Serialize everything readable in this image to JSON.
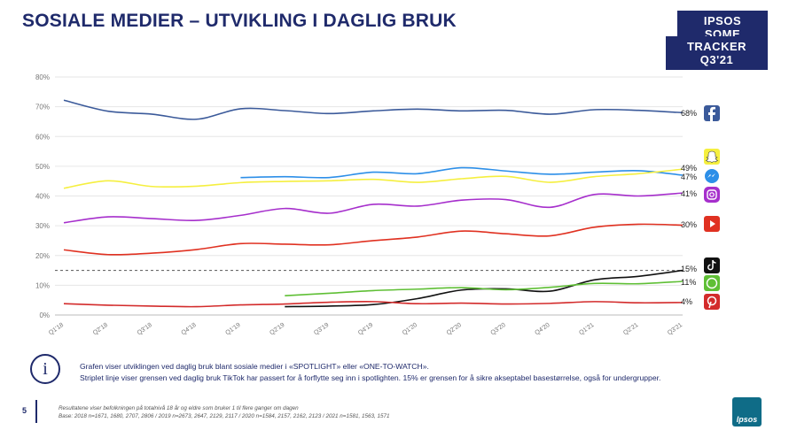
{
  "header": {
    "title": "SOSIALE MEDIER – UTVIKLING I DAGLIG BRUK",
    "tag_line1": "IPSOS SOME",
    "tag_line2": "TRACKER Q3'21"
  },
  "chart_data": {
    "type": "line",
    "x": [
      "Q1'18",
      "Q2'18",
      "Q3'18",
      "Q4'18",
      "Q1'19",
      "Q2'19",
      "Q3'19",
      "Q4'19",
      "Q1'20",
      "Q2'20",
      "Q3'20",
      "Q4'20",
      "Q1'21",
      "Q2'21",
      "Q3'21"
    ],
    "ylim": [
      0,
      80
    ],
    "yticks": [
      "0%",
      "10%",
      "20%",
      "30%",
      "40%",
      "50%",
      "60%",
      "70%",
      "80%"
    ],
    "grid": true,
    "threshold": {
      "value": 15,
      "style": "dashed"
    },
    "series": [
      {
        "icon": "facebook-icon",
        "color": "#3b5a9a",
        "values": [
          72.2,
          68.5,
          67.5,
          65.8,
          69.3,
          68.7,
          67.7,
          68.6,
          69.2,
          68.6,
          68.8,
          67.5,
          69.0,
          68.8,
          68.0
        ],
        "end_label": "68%"
      },
      {
        "icon": "messenger-icon",
        "color": "#2d8fe8",
        "values": [
          null,
          null,
          null,
          null,
          46.2,
          46.5,
          46.2,
          48.0,
          47.5,
          49.5,
          48.4,
          47.3,
          48.0,
          48.5,
          47.0
        ],
        "end_label": "47%"
      },
      {
        "icon": "snapchat-icon",
        "color": "#f5ef3f",
        "values": [
          42.6,
          45.1,
          43.2,
          43.3,
          44.5,
          44.9,
          45.1,
          45.6,
          44.6,
          45.8,
          46.6,
          44.6,
          46.5,
          47.5,
          49.0
        ],
        "end_label": "49%"
      },
      {
        "icon": "instagram-icon",
        "color": "#a62fcc",
        "values": [
          31.0,
          33.0,
          32.4,
          31.8,
          33.5,
          35.8,
          34.2,
          37.2,
          36.6,
          38.6,
          38.8,
          36.2,
          40.5,
          40.0,
          41.0
        ],
        "end_label": "41%"
      },
      {
        "icon": "youtube-icon",
        "color": "#e03121",
        "values": [
          21.9,
          20.3,
          20.8,
          22.0,
          24.0,
          23.8,
          23.6,
          25.0,
          26.2,
          28.2,
          27.3,
          26.6,
          29.5,
          30.5,
          30.2
        ],
        "end_label": "30%"
      },
      {
        "icon": "tiktok-icon",
        "color": "#111111",
        "values": [
          null,
          null,
          null,
          null,
          null,
          2.8,
          3.0,
          3.5,
          5.5,
          8.4,
          8.8,
          8.0,
          11.8,
          13.0,
          15.0
        ],
        "end_label": "15%"
      },
      {
        "icon": "whatsapp-icon",
        "color": "#5fbf35",
        "values": [
          null,
          null,
          null,
          null,
          null,
          6.5,
          7.3,
          8.2,
          8.7,
          9.2,
          8.5,
          9.3,
          10.6,
          10.5,
          11.3
        ],
        "end_label": "11%"
      },
      {
        "icon": "pinterest-icon",
        "color": "#d32b2b",
        "values": [
          3.8,
          3.3,
          3.0,
          2.8,
          3.4,
          3.7,
          4.3,
          4.5,
          3.8,
          4.0,
          3.7,
          3.9,
          4.5,
          4.1,
          4.2
        ],
        "end_label": "4%"
      }
    ]
  },
  "note": {
    "line1": "Grafen viser utviklingen ved daglig bruk blant sosiale medier i «SPOTLIGHT» eller «ONE-TO-WATCH».",
    "line2": "Striplet linje viser grensen ved daglig bruk TikTok har passert for å forflytte seg inn i spotlighten. 15% er grensen for å sikre akseptabel basestørrelse, også for undergrupper."
  },
  "footer": {
    "page_number": "5",
    "line1": "Resultatene viser befolkningen på totalnivå 18 år og eldre som bruker 1 til flere ganger om dagen",
    "line2": "Base: 2018 n=1671, 1680, 2707, 2806 / 2019 n=2673, 2647, 2129, 2117 / 2020 n=1584, 2157, 2162, 2123 / 2021 n=1581, 1563, 1571"
  },
  "logo": "Ipsos"
}
